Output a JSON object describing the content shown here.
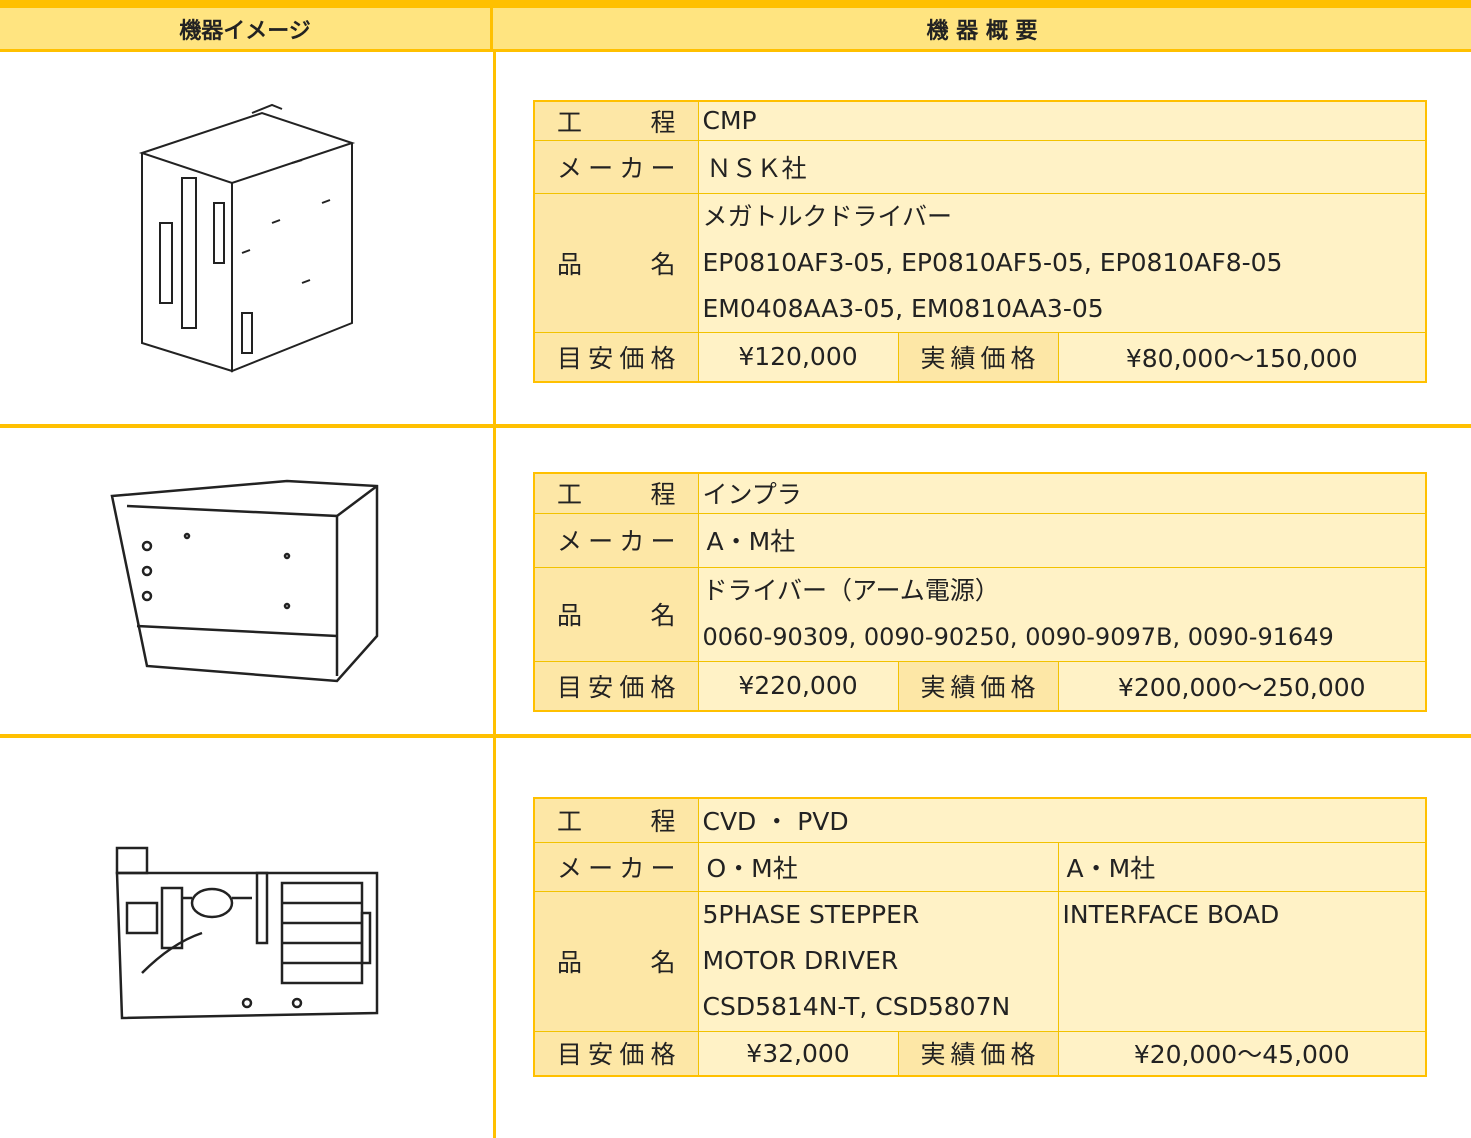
{
  "header": {
    "image_col": "機器イメージ",
    "overview_col": "機 器 概 要"
  },
  "items": [
    {
      "process_label": "工　程",
      "process": "CMP",
      "maker_label": "メーカー",
      "makers": [
        "ＮＳＫ社"
      ],
      "name_label": "品　名",
      "names": [
        [
          "メガトルクドライバー",
          "EP0810AF3-05, EP0810AF5-05, EP0810AF8-05",
          "EM0408AA3-05, EM0810AA3-05"
        ]
      ],
      "price_label": "目安価格",
      "price": "¥120,000",
      "actual_label": "実績価格",
      "actual": "¥80,000～150,000"
    },
    {
      "process_label": "工　程",
      "process": "インプラ",
      "maker_label": "メーカー",
      "makers": [
        "A・M社"
      ],
      "name_label": "品　名",
      "names": [
        [
          "ドライバー（アーム電源）",
          "0060-90309, 0090-90250, 0090-9097B, 0090-91649"
        ]
      ],
      "price_label": "目安価格",
      "price": "¥220,000",
      "actual_label": "実績価格",
      "actual": "¥200,000～250,000"
    },
    {
      "process_label": "工　程",
      "process": "CVD ・ PVD",
      "maker_label": "メーカー",
      "makers": [
        "O・M社",
        "A・M社"
      ],
      "name_label": "品　名",
      "names": [
        [
          "5PHASE STEPPER",
          "MOTOR DRIVER",
          "CSD5814N-T, CSD5807N"
        ],
        [
          "INTERFACE BOAD"
        ]
      ],
      "price_label": "目安価格",
      "price": "¥32,000",
      "actual_label": "実績価格",
      "actual": "¥20,000～45,000"
    }
  ]
}
